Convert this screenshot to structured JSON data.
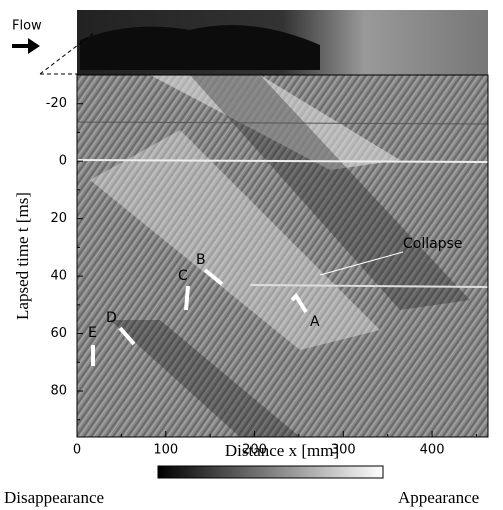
{
  "figure": {
    "inset_label": "Flow",
    "x_axis": {
      "label": "Distance x [mm]",
      "lim": [
        0,
        463
      ],
      "ticks": [
        0,
        100,
        200,
        300,
        400
      ],
      "minor_ticks": [
        50,
        150,
        250,
        350,
        450
      ]
    },
    "y_axis": {
      "label": "Lapsed time t [ms]",
      "lim": [
        -30,
        96
      ],
      "ticks": [
        -20,
        0,
        20,
        40,
        60,
        80
      ],
      "minor_ticks": [
        -10,
        10,
        30,
        50,
        70,
        90
      ]
    },
    "annotations": [
      {
        "text": "Collapse"
      },
      {
        "text": "A"
      },
      {
        "text": "B"
      },
      {
        "text": "C"
      },
      {
        "text": "D"
      },
      {
        "text": "E"
      }
    ],
    "colorbar": {
      "low_label": "Disappearance",
      "high_label": "Appearance"
    }
  }
}
